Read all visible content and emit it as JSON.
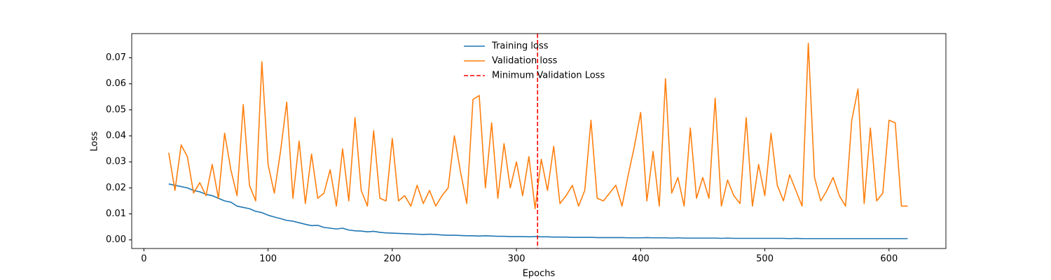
{
  "chart_data": {
    "type": "line",
    "xlabel": "Epochs",
    "ylabel": "Loss",
    "x": [
      20,
      25,
      30,
      35,
      40,
      45,
      50,
      55,
      60,
      65,
      70,
      75,
      80,
      85,
      90,
      95,
      100,
      105,
      110,
      115,
      120,
      125,
      130,
      135,
      140,
      145,
      150,
      155,
      160,
      165,
      170,
      175,
      180,
      185,
      190,
      195,
      200,
      205,
      210,
      215,
      220,
      225,
      230,
      235,
      240,
      245,
      250,
      255,
      260,
      265,
      270,
      275,
      280,
      285,
      290,
      295,
      300,
      305,
      310,
      315,
      320,
      325,
      330,
      335,
      340,
      345,
      350,
      355,
      360,
      365,
      370,
      375,
      380,
      385,
      390,
      395,
      400,
      405,
      410,
      415,
      420,
      425,
      430,
      435,
      440,
      445,
      450,
      455,
      460,
      465,
      470,
      475,
      480,
      485,
      490,
      495,
      500,
      505,
      510,
      515,
      520,
      525,
      530,
      535,
      540,
      545,
      550,
      555,
      560,
      565,
      570,
      575,
      580,
      585,
      590,
      595,
      600,
      605,
      610,
      615
    ],
    "series": [
      {
        "name": "Training loss",
        "color": "#1f77b4",
        "values": [
          0.0215,
          0.021,
          0.0205,
          0.02,
          0.019,
          0.0185,
          0.0175,
          0.017,
          0.016,
          0.015,
          0.0145,
          0.013,
          0.0125,
          0.012,
          0.011,
          0.0105,
          0.0095,
          0.0088,
          0.0082,
          0.0075,
          0.0072,
          0.0066,
          0.006,
          0.0055,
          0.0056,
          0.0048,
          0.0045,
          0.0042,
          0.0045,
          0.0038,
          0.0035,
          0.0034,
          0.0031,
          0.0033,
          0.0029,
          0.0027,
          0.0026,
          0.0025,
          0.0024,
          0.0023,
          0.0022,
          0.0021,
          0.0022,
          0.0021,
          0.0019,
          0.0018,
          0.0018,
          0.0017,
          0.0016,
          0.0016,
          0.0015,
          0.0016,
          0.0015,
          0.0014,
          0.0014,
          0.0013,
          0.0013,
          0.0013,
          0.0012,
          0.0013,
          0.0012,
          0.0012,
          0.0011,
          0.0011,
          0.0011,
          0.001,
          0.001,
          0.001,
          0.001,
          0.0009,
          0.0009,
          0.0009,
          0.0009,
          0.0009,
          0.0008,
          0.0008,
          0.0008,
          0.0009,
          0.0008,
          0.0008,
          0.0008,
          0.0007,
          0.0008,
          0.0007,
          0.0007,
          0.0007,
          0.0007,
          0.0007,
          0.0007,
          0.0006,
          0.0007,
          0.0006,
          0.0006,
          0.0006,
          0.0006,
          0.0006,
          0.0006,
          0.0006,
          0.0006,
          0.0006,
          0.0005,
          0.0006,
          0.0005,
          0.0005,
          0.0005,
          0.0005,
          0.0005,
          0.0005,
          0.0005,
          0.0005,
          0.0005,
          0.0005,
          0.0005,
          0.0005,
          0.0005,
          0.0005,
          0.0005,
          0.0005,
          0.0005,
          0.0005
        ]
      },
      {
        "name": "Validation loss",
        "color": "#ff7f0e",
        "values": [
          0.0335,
          0.019,
          0.0365,
          0.032,
          0.018,
          0.022,
          0.017,
          0.029,
          0.016,
          0.041,
          0.027,
          0.017,
          0.052,
          0.021,
          0.015,
          0.0685,
          0.029,
          0.018,
          0.034,
          0.053,
          0.016,
          0.038,
          0.014,
          0.033,
          0.016,
          0.018,
          0.027,
          0.013,
          0.035,
          0.015,
          0.047,
          0.019,
          0.013,
          0.042,
          0.016,
          0.015,
          0.039,
          0.015,
          0.017,
          0.013,
          0.021,
          0.014,
          0.019,
          0.013,
          0.017,
          0.02,
          0.04,
          0.026,
          0.014,
          0.054,
          0.0555,
          0.02,
          0.045,
          0.016,
          0.037,
          0.02,
          0.03,
          0.017,
          0.032,
          0.012,
          0.031,
          0.019,
          0.036,
          0.014,
          0.017,
          0.021,
          0.013,
          0.019,
          0.046,
          0.016,
          0.015,
          0.018,
          0.021,
          0.013,
          0.025,
          0.036,
          0.049,
          0.015,
          0.034,
          0.013,
          0.062,
          0.018,
          0.024,
          0.013,
          0.043,
          0.016,
          0.024,
          0.016,
          0.0545,
          0.013,
          0.023,
          0.017,
          0.014,
          0.047,
          0.013,
          0.029,
          0.017,
          0.041,
          0.021,
          0.015,
          0.025,
          0.019,
          0.013,
          0.0756,
          0.024,
          0.015,
          0.019,
          0.024,
          0.017,
          0.013,
          0.046,
          0.058,
          0.014,
          0.043,
          0.015,
          0.018,
          0.046,
          0.045,
          0.013,
          0.013
        ]
      }
    ],
    "vline": {
      "x": 317,
      "name": "Minimum Validation Loss",
      "color": "#ff0000"
    },
    "xlim": [
      -9.8,
      645.8
    ],
    "ylim": [
      -0.0033,
      0.0793
    ],
    "xticks": [
      0,
      100,
      200,
      300,
      400,
      500,
      600
    ],
    "yticks": [
      {
        "value": 0,
        "label": "0.00"
      },
      {
        "value": 0.01,
        "label": "0.01"
      },
      {
        "value": 0.02,
        "label": "0.02"
      },
      {
        "value": 0.03,
        "label": "0.03"
      },
      {
        "value": 0.04,
        "label": "0.04"
      },
      {
        "value": 0.05,
        "label": "0.05"
      },
      {
        "value": 0.06,
        "label": "0.06"
      },
      {
        "value": 0.07,
        "label": "0.07"
      }
    ],
    "legend": "upper center"
  }
}
